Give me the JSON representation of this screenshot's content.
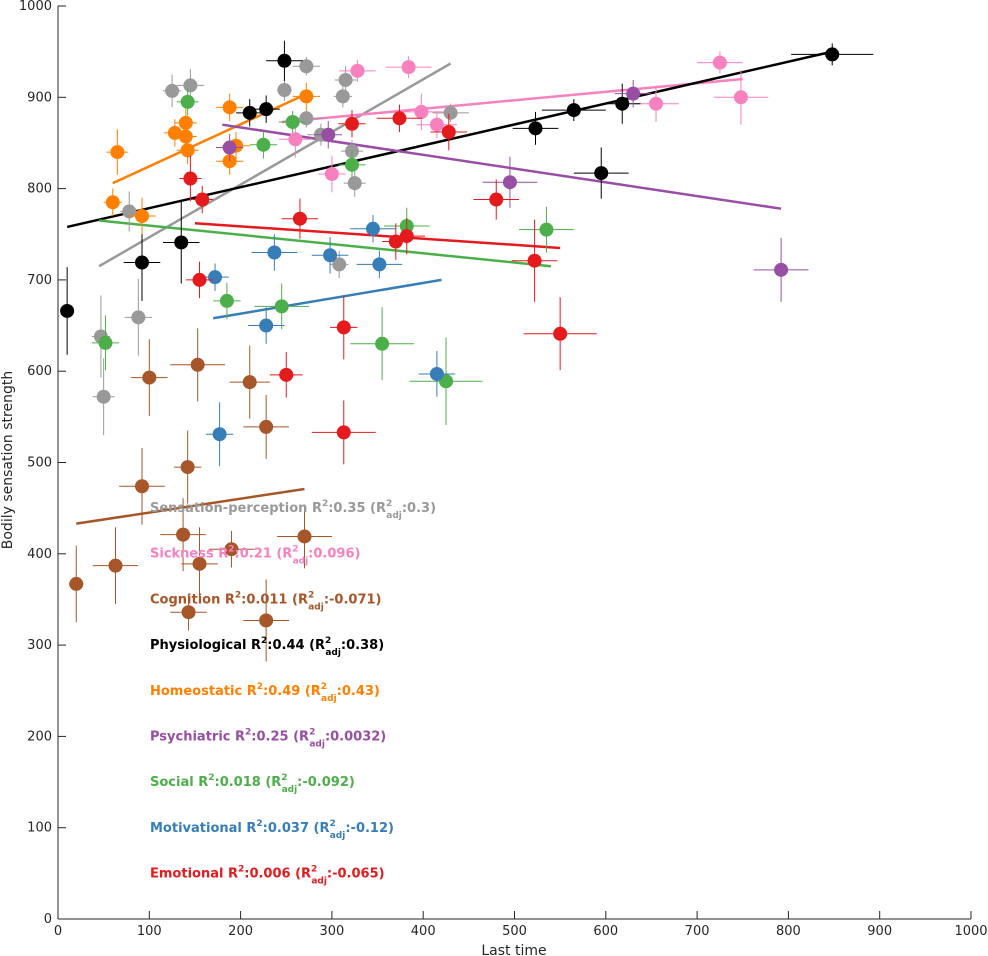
{
  "chart_data": {
    "type": "scatter",
    "xlabel": "Last time",
    "ylabel": "Bodily sensation strength",
    "xlim": [
      0,
      1000
    ],
    "ylim": [
      0,
      1000
    ],
    "xticks": [
      0,
      100,
      200,
      300,
      400,
      500,
      600,
      700,
      800,
      900,
      1000
    ],
    "yticks": [
      0,
      100,
      200,
      300,
      400,
      500,
      600,
      700,
      800,
      900,
      1000
    ],
    "error_bars": true,
    "regression_lines": true,
    "grid": false,
    "series": [
      {
        "name": "Sensation-perception",
        "color": "#999999",
        "r2": "0.35",
        "r2adj": "0.3",
        "fit": [
          [
            45,
            715
          ],
          [
            430,
            937
          ]
        ],
        "points": [
          [
            47,
            638,
            10,
            45
          ],
          [
            50,
            572,
            12,
            42
          ],
          [
            78,
            775,
            10,
            22
          ],
          [
            88,
            659,
            15,
            42
          ],
          [
            125,
            907,
            10,
            18
          ],
          [
            145,
            913,
            15,
            18
          ],
          [
            248,
            908,
            8,
            12
          ],
          [
            272,
            934,
            15,
            10
          ],
          [
            272,
            877,
            20,
            10
          ],
          [
            288,
            859,
            15,
            12
          ],
          [
            308,
            717,
            10,
            15
          ],
          [
            312,
            901,
            10,
            12
          ],
          [
            315,
            919,
            12,
            15
          ],
          [
            322,
            841,
            12,
            12
          ],
          [
            325,
            806,
            12,
            15
          ],
          [
            430,
            883,
            20,
            10
          ]
        ]
      },
      {
        "name": "Sickness",
        "color": "#f781bf",
        "r2": "0.21",
        "r2adj": "0.096",
        "fit": [
          [
            245,
            873
          ],
          [
            750,
            920
          ]
        ],
        "points": [
          [
            260,
            854,
            18,
            20
          ],
          [
            300,
            816,
            15,
            20
          ],
          [
            328,
            929,
            20,
            12
          ],
          [
            384,
            933,
            25,
            12
          ],
          [
            398,
            884,
            25,
            20
          ],
          [
            415,
            870,
            22,
            15
          ],
          [
            655,
            893,
            25,
            20
          ],
          [
            725,
            938,
            25,
            12
          ],
          [
            748,
            900,
            30,
            30
          ]
        ]
      },
      {
        "name": "Cognition",
        "color": "#a65628",
        "r2": "0.011",
        "r2adj": "-0.071",
        "fit": [
          [
            20,
            433
          ],
          [
            270,
            471
          ]
        ],
        "points": [
          [
            20,
            367,
            8,
            42
          ],
          [
            63,
            387,
            25,
            42
          ],
          [
            92,
            474,
            25,
            42
          ],
          [
            100,
            593,
            20,
            42
          ],
          [
            137,
            421,
            25,
            40
          ],
          [
            142,
            495,
            15,
            40
          ],
          [
            143,
            336,
            20,
            20
          ],
          [
            153,
            607,
            30,
            40
          ],
          [
            155,
            389,
            20,
            40
          ],
          [
            190,
            405,
            25,
            20
          ],
          [
            210,
            588,
            22,
            40
          ],
          [
            228,
            539,
            25,
            35
          ],
          [
            228,
            327,
            25,
            45
          ],
          [
            270,
            419,
            30,
            35
          ]
        ]
      },
      {
        "name": "Physiological",
        "color": "#000000",
        "r2": "0.44",
        "r2adj": "0.38",
        "fit": [
          [
            10,
            758
          ],
          [
            848,
            950
          ]
        ],
        "points": [
          [
            10,
            666,
            5,
            48
          ],
          [
            92,
            719,
            20,
            42
          ],
          [
            135,
            741,
            20,
            45
          ],
          [
            210,
            883,
            15,
            15
          ],
          [
            228,
            887,
            15,
            15
          ],
          [
            248,
            940,
            20,
            22
          ],
          [
            523,
            866,
            25,
            18
          ],
          [
            565,
            886,
            35,
            12
          ],
          [
            595,
            817,
            30,
            28
          ],
          [
            618,
            893,
            20,
            22
          ],
          [
            848,
            947,
            45,
            12
          ]
        ]
      },
      {
        "name": "Homeostatic",
        "color": "#ff7f00",
        "r2": "0.49",
        "r2adj": "0.43",
        "fit": [
          [
            60,
            806
          ],
          [
            275,
            905
          ]
        ],
        "points": [
          [
            60,
            785,
            10,
            15
          ],
          [
            65,
            840,
            12,
            25
          ],
          [
            92,
            770,
            15,
            20
          ],
          [
            128,
            861,
            12,
            15
          ],
          [
            140,
            872,
            12,
            15
          ],
          [
            140,
            857,
            12,
            15
          ],
          [
            142,
            842,
            12,
            15
          ],
          [
            188,
            889,
            15,
            15
          ],
          [
            188,
            830,
            15,
            15
          ],
          [
            195,
            847,
            15,
            15
          ],
          [
            272,
            901,
            15,
            15
          ]
        ]
      },
      {
        "name": "Psychiatric",
        "color": "#984ea3",
        "r2": "0.25",
        "r2adj": "0.0032",
        "fit": [
          [
            180,
            870
          ],
          [
            792,
            778
          ]
        ],
        "points": [
          [
            188,
            845,
            15,
            15
          ],
          [
            296,
            859,
            15,
            15
          ],
          [
            495,
            807,
            30,
            28
          ],
          [
            630,
            904,
            20,
            15
          ],
          [
            792,
            711,
            30,
            35
          ]
        ]
      },
      {
        "name": "Social",
        "color": "#4daf4a",
        "r2": "0.018",
        "r2adj": "-0.092",
        "fit": [
          [
            45,
            765
          ],
          [
            540,
            715
          ]
        ],
        "points": [
          [
            52,
            631,
            15,
            30
          ],
          [
            142,
            895,
            12,
            15
          ],
          [
            185,
            677,
            15,
            20
          ],
          [
            225,
            848,
            15,
            15
          ],
          [
            245,
            671,
            30,
            25
          ],
          [
            257,
            873,
            15,
            12
          ],
          [
            322,
            826,
            15,
            15
          ],
          [
            355,
            630,
            35,
            40
          ],
          [
            382,
            759,
            25,
            20
          ],
          [
            425,
            589,
            40,
            48
          ],
          [
            535,
            755,
            30,
            25
          ]
        ]
      },
      {
        "name": "Motivational",
        "color": "#377eb8",
        "r2": "0.037",
        "r2adj": "-0.12",
        "fit": [
          [
            170,
            658
          ],
          [
            420,
            700
          ]
        ],
        "points": [
          [
            172,
            703,
            15,
            15
          ],
          [
            177,
            531,
            15,
            35
          ],
          [
            228,
            650,
            20,
            20
          ],
          [
            237,
            730,
            25,
            20
          ],
          [
            298,
            727,
            20,
            20
          ],
          [
            345,
            756,
            25,
            15
          ],
          [
            352,
            717,
            25,
            15
          ],
          [
            415,
            597,
            20,
            25
          ]
        ]
      },
      {
        "name": "Emotional",
        "color": "#e41a1c",
        "r2": "0.006",
        "r2adj": "-0.065",
        "fit": [
          [
            150,
            762
          ],
          [
            550,
            735
          ]
        ],
        "points": [
          [
            145,
            811,
            12,
            25
          ],
          [
            155,
            700,
            15,
            20
          ],
          [
            158,
            788,
            12,
            15
          ],
          [
            250,
            596,
            18,
            25
          ],
          [
            265,
            767,
            20,
            22
          ],
          [
            313,
            648,
            15,
            35
          ],
          [
            313,
            533,
            35,
            35
          ],
          [
            322,
            871,
            15,
            15
          ],
          [
            370,
            742,
            15,
            20
          ],
          [
            374,
            877,
            25,
            15
          ],
          [
            382,
            748,
            20,
            20
          ],
          [
            428,
            862,
            20,
            20
          ],
          [
            480,
            788,
            25,
            22
          ],
          [
            522,
            721,
            25,
            45
          ],
          [
            550,
            641,
            40,
            40
          ]
        ]
      }
    ]
  }
}
